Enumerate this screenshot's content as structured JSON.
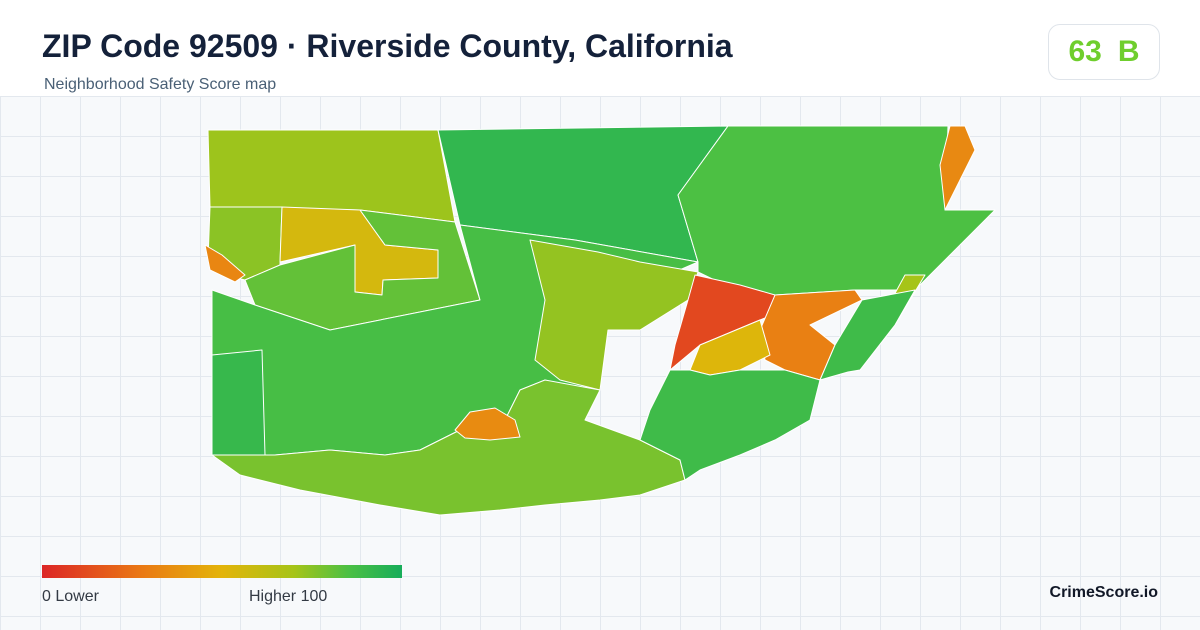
{
  "header": {
    "title": "ZIP Code 92509 · Riverside County, California",
    "subtitle": "Neighborhood Safety Score map"
  },
  "score": {
    "value": "63",
    "grade": "B"
  },
  "legend": {
    "low_label": "0  Lower",
    "high_label": "Higher  100",
    "colors": [
      "#dc2626",
      "#ea7a14",
      "#e3b40a",
      "#a6c418",
      "#4cc043",
      "#17ad5a"
    ]
  },
  "brand": "CrimeScore.io",
  "map_regions": [
    {
      "id": "nw-olive",
      "score": 62
    },
    {
      "id": "north-green",
      "score": 90
    },
    {
      "id": "ne-lightgreen",
      "score": 80
    },
    {
      "id": "ne-orange",
      "score": 25
    },
    {
      "id": "west-yellowgreen",
      "score": 66
    },
    {
      "id": "west-amber",
      "score": 45
    },
    {
      "id": "west-orange",
      "score": 24
    },
    {
      "id": "west-lime",
      "score": 75
    },
    {
      "id": "center-green",
      "score": 82
    },
    {
      "id": "center-olive",
      "score": 64
    },
    {
      "id": "sw-green",
      "score": 88
    },
    {
      "id": "south-lime",
      "score": 70
    },
    {
      "id": "south-orange",
      "score": 26
    },
    {
      "id": "center-red",
      "score": 8
    },
    {
      "id": "east-orange",
      "score": 22
    },
    {
      "id": "east-amber",
      "score": 42
    },
    {
      "id": "east-strip",
      "score": 60
    },
    {
      "id": "se-green",
      "score": 85
    }
  ]
}
